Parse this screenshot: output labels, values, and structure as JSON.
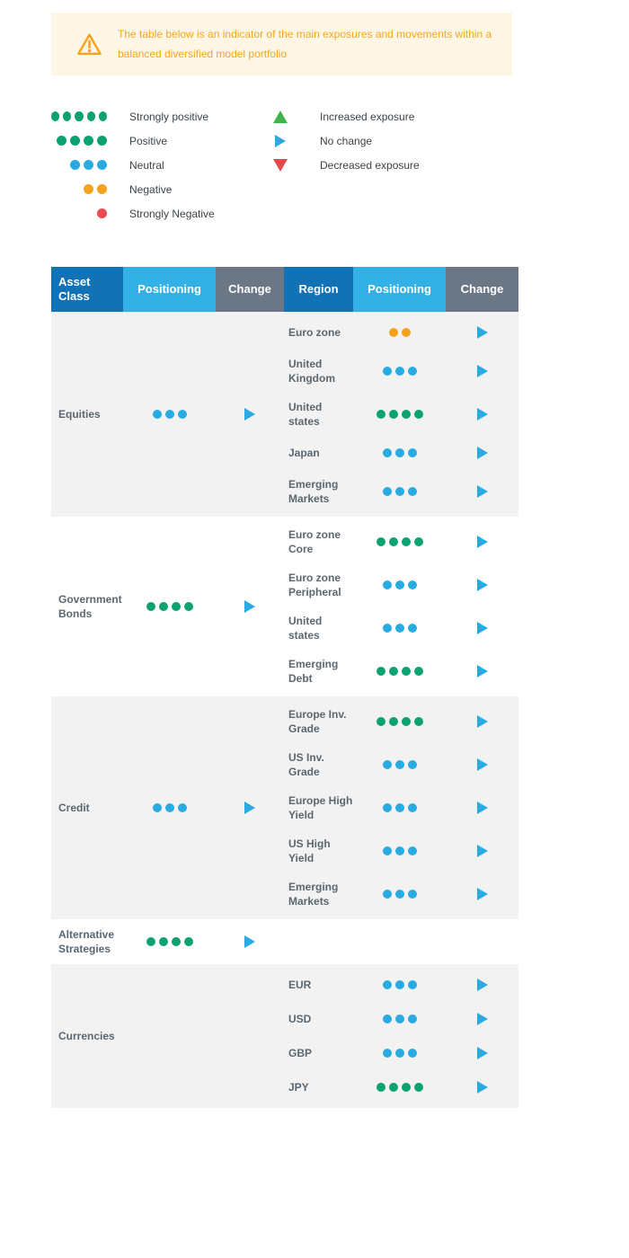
{
  "warning": {
    "text": "The table below is an indicator of the main exposures and movements within a balanced diversified model portfolio"
  },
  "legend": {
    "positioning": [
      {
        "label": "Strongly positive",
        "dots": 5,
        "color": "green"
      },
      {
        "label": "Positive",
        "dots": 4,
        "color": "green"
      },
      {
        "label": "Neutral",
        "dots": 3,
        "color": "blue"
      },
      {
        "label": "Negative",
        "dots": 2,
        "color": "orange"
      },
      {
        "label": "Strongly Negative",
        "dots": 1,
        "color": "red"
      }
    ],
    "change": [
      {
        "label": "Increased exposure",
        "symbol": "triangle-up"
      },
      {
        "label": "No change",
        "symbol": "triangle-right"
      },
      {
        "label": "Decreased exposure",
        "symbol": "triangle-down"
      }
    ]
  },
  "table": {
    "headers": [
      "Asset Class",
      "Positioning",
      "Change",
      "Region",
      "Positioning",
      "Change"
    ],
    "sections": [
      {
        "asset_class": "Equities",
        "positioning": {
          "dots": 3,
          "color": "blue"
        },
        "change": "no-change",
        "regions": [
          {
            "name": "Euro zone",
            "positioning": {
              "dots": 2,
              "color": "orange"
            },
            "change": "no-change"
          },
          {
            "name": "United Kingdom",
            "positioning": {
              "dots": 3,
              "color": "blue"
            },
            "change": "no-change"
          },
          {
            "name": "United states",
            "positioning": {
              "dots": 4,
              "color": "green"
            },
            "change": "no-change"
          },
          {
            "name": "Japan",
            "positioning": {
              "dots": 3,
              "color": "blue"
            },
            "change": "no-change"
          },
          {
            "name": "Emerging Markets",
            "positioning": {
              "dots": 3,
              "color": "blue"
            },
            "change": "no-change"
          }
        ]
      },
      {
        "asset_class": "Government Bonds",
        "positioning": {
          "dots": 4,
          "color": "green"
        },
        "change": "no-change",
        "regions": [
          {
            "name": "Euro zone Core",
            "positioning": {
              "dots": 4,
              "color": "green"
            },
            "change": "no-change"
          },
          {
            "name": "Euro zone Peripheral",
            "positioning": {
              "dots": 3,
              "color": "blue"
            },
            "change": "no-change"
          },
          {
            "name": "United states",
            "positioning": {
              "dots": 3,
              "color": "blue"
            },
            "change": "no-change"
          },
          {
            "name": "Emerging Debt",
            "positioning": {
              "dots": 4,
              "color": "green"
            },
            "change": "no-change"
          }
        ]
      },
      {
        "asset_class": "Credit",
        "positioning": {
          "dots": 3,
          "color": "blue"
        },
        "change": "no-change",
        "regions": [
          {
            "name": "Europe Inv. Grade",
            "positioning": {
              "dots": 4,
              "color": "green"
            },
            "change": "no-change"
          },
          {
            "name": "US Inv. Grade",
            "positioning": {
              "dots": 3,
              "color": "blue"
            },
            "change": "no-change"
          },
          {
            "name": "Europe High Yield",
            "positioning": {
              "dots": 3,
              "color": "blue"
            },
            "change": "no-change"
          },
          {
            "name": "US High Yield",
            "positioning": {
              "dots": 3,
              "color": "blue"
            },
            "change": "no-change"
          },
          {
            "name": "Emerging Markets",
            "positioning": {
              "dots": 3,
              "color": "blue"
            },
            "change": "no-change"
          }
        ]
      },
      {
        "asset_class": "Alternative Strategies",
        "positioning": {
          "dots": 4,
          "color": "green"
        },
        "change": "no-change",
        "regions": []
      },
      {
        "asset_class": "Currencies",
        "positioning": null,
        "change": null,
        "regions": [
          {
            "name": "EUR",
            "positioning": {
              "dots": 3,
              "color": "blue"
            },
            "change": "no-change"
          },
          {
            "name": "USD",
            "positioning": {
              "dots": 3,
              "color": "blue"
            },
            "change": "no-change"
          },
          {
            "name": "GBP",
            "positioning": {
              "dots": 3,
              "color": "blue"
            },
            "change": "no-change"
          },
          {
            "name": "JPY",
            "positioning": {
              "dots": 4,
              "color": "green"
            },
            "change": "no-change"
          }
        ]
      }
    ]
  },
  "colors": {
    "green": "#0CA26F",
    "blue": "#29ABE2",
    "orange": "#F5A21D",
    "red": "#E84C50",
    "triangle_green": "#3DB54A",
    "triangle_red": "#E8474B",
    "header_dark_blue": "#1173B5",
    "header_light_blue": "#33B1E4",
    "header_gray": "#6B7785",
    "section_gray": "#F2F2F2",
    "warning_bg": "#FDF6E4",
    "warning_text": "#F7A623",
    "body_text": "#5B6770"
  }
}
